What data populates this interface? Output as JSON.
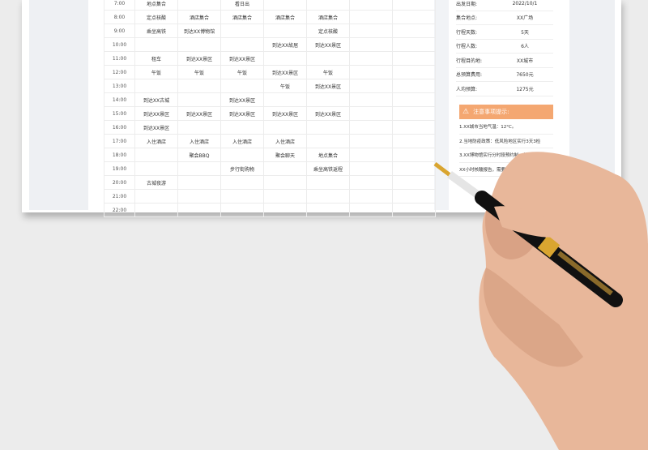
{
  "schedule": {
    "rows": [
      {
        "time": "7:00",
        "cells": [
          "地点集合",
          "",
          "看日出",
          "",
          "",
          "",
          ""
        ]
      },
      {
        "time": "8:00",
        "cells": [
          "定点核酸",
          "酒店集合",
          "酒店集合",
          "酒店集合",
          "酒店集合",
          "",
          ""
        ]
      },
      {
        "time": "9:00",
        "cells": [
          "乘坐高铁",
          "到达XX博物馆",
          "",
          "",
          "定点核酸",
          "",
          ""
        ]
      },
      {
        "time": "10:00",
        "cells": [
          "",
          "",
          "",
          "到达XX故居",
          "到达XX景区",
          "",
          ""
        ]
      },
      {
        "time": "11:00",
        "cells": [
          "租车",
          "到达XX景区",
          "到达XX景区",
          "",
          "",
          "",
          ""
        ]
      },
      {
        "time": "12:00",
        "cells": [
          "午饭",
          "午饭",
          "午饭",
          "到达XX景区",
          "午饭",
          "",
          ""
        ]
      },
      {
        "time": "13:00",
        "cells": [
          "",
          "",
          "",
          "午饭",
          "到达XX景区",
          "",
          ""
        ]
      },
      {
        "time": "14:00",
        "cells": [
          "到达XX古城",
          "",
          "到达XX景区",
          "",
          "",
          "",
          ""
        ]
      },
      {
        "time": "15:00",
        "cells": [
          "到达XX景区",
          "到达XX景区",
          "到达XX景区",
          "到达XX景区",
          "到达XX景区",
          "",
          ""
        ]
      },
      {
        "time": "16:00",
        "cells": [
          "到达XX景区",
          "",
          "",
          "",
          "",
          "",
          ""
        ]
      },
      {
        "time": "17:00",
        "cells": [
          "入住酒店",
          "入住酒店",
          "入住酒店",
          "入住酒店",
          "",
          "",
          ""
        ]
      },
      {
        "time": "18:00",
        "cells": [
          "",
          "聚会BBQ",
          "",
          "聚会聊天",
          "地点集合",
          "",
          ""
        ]
      },
      {
        "time": "19:00",
        "cells": [
          "",
          "",
          "步行街购物",
          "",
          "乘坐高铁返程",
          "",
          ""
        ]
      },
      {
        "time": "20:00",
        "cells": [
          "古城夜游",
          "",
          "",
          "",
          "",
          "",
          ""
        ]
      },
      {
        "time": "21:00",
        "cells": [
          "",
          "",
          "",
          "",
          "",
          "",
          ""
        ]
      },
      {
        "time": "22:00",
        "cells": [
          "",
          "",
          "",
          "",
          "",
          "",
          ""
        ]
      }
    ]
  },
  "info": [
    {
      "label": "出发日期:",
      "value": "2022/10/1"
    },
    {
      "label": "集合地点:",
      "value": "XX广场"
    },
    {
      "label": "行程天数:",
      "value": "5天"
    },
    {
      "label": "行程人数:",
      "value": "6人"
    },
    {
      "label": "行程目的地:",
      "value": "XX城市"
    },
    {
      "label": "总预算费用:",
      "value": "7650元"
    },
    {
      "label": "人均预算:",
      "value": "1275元"
    }
  ],
  "notice": {
    "title": "注意事项提示:",
    "icon": "warning-icon",
    "color": "#f4a771",
    "items": [
      "1.XX城市当地气温：12°C。",
      "2.当地防疫政策：低风险地区实行3天3检",
      "3.XX博物馆实行分时段预约制，并需要出示",
      "XX小时核酸报告，需要提前准备"
    ]
  }
}
